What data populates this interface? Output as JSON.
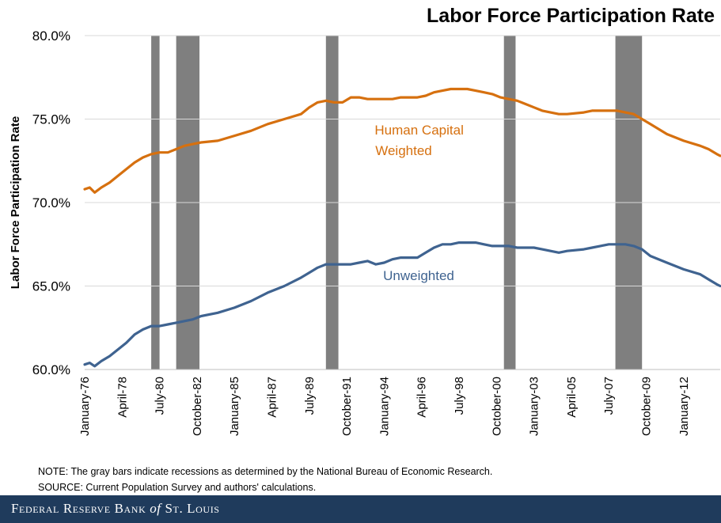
{
  "header": {
    "title": "Labor Force Participation Rate"
  },
  "notes": {
    "note": "NOTE: The gray bars indicate recessions as determined by the National Bureau of Economic Research.",
    "source": "SOURCE: Current Population Survey and authors' calculations."
  },
  "footer": {
    "brand_pre": "Federal Reserve Bank",
    "brand_of": "of",
    "brand_post": "St. Louis"
  },
  "colors": {
    "weighted": "#d6700f",
    "unweighted": "#3f6390",
    "recession": "#7f7f7f",
    "footer_bg": "#1f3b5c"
  },
  "chart_data": {
    "type": "line",
    "title": "Labor Force Participation Rate",
    "ylabel": "Labor Force Participation  Rate",
    "xlabel": "",
    "ylim": [
      60,
      80
    ],
    "xlim": [
      1976.0,
      2014.2
    ],
    "yticks": [
      60,
      65,
      70,
      75,
      80
    ],
    "ytick_labels": [
      "60.0%",
      "65.0%",
      "70.0%",
      "75.0%",
      "80.0%"
    ],
    "xticks": [
      1976.0,
      1978.25,
      1980.5,
      1982.75,
      1985.0,
      1987.25,
      1989.5,
      1991.75,
      1994.0,
      1996.25,
      1998.5,
      2000.75,
      2003.0,
      2005.25,
      2007.5,
      2009.75,
      2012.0
    ],
    "xtick_labels": [
      "January-76",
      "April-78",
      "July-80",
      "October-82",
      "January-85",
      "April-87",
      "July-89",
      "October-91",
      "January-94",
      "April-96",
      "July-98",
      "October-00",
      "January-03",
      "April-05",
      "July-07",
      "October-09",
      "January-12"
    ],
    "recessions": [
      [
        1980.0,
        1980.5
      ],
      [
        1981.5,
        1982.9
      ],
      [
        1990.5,
        1991.25
      ],
      [
        2001.2,
        2001.9
      ],
      [
        2007.9,
        2009.5
      ]
    ],
    "series": [
      {
        "name": "Human Capital Weighted",
        "label_lines": [
          "Human Capital",
          "Weighted"
        ],
        "x": [
          1976.0,
          1976.3,
          1976.6,
          1977.0,
          1977.5,
          1978.0,
          1978.5,
          1979.0,
          1979.5,
          1980.0,
          1980.5,
          1981.0,
          1981.5,
          1982.0,
          1982.5,
          1983.0,
          1984.0,
          1985.0,
          1986.0,
          1987.0,
          1988.0,
          1989.0,
          1989.5,
          1990.0,
          1990.5,
          1991.0,
          1991.5,
          1992.0,
          1992.5,
          1993.0,
          1993.5,
          1994.0,
          1994.5,
          1995.0,
          1996.0,
          1996.5,
          1997.0,
          1997.5,
          1998.0,
          1998.5,
          1999.0,
          1999.5,
          2000.0,
          2000.5,
          2001.0,
          2001.5,
          2002.0,
          2002.5,
          2003.0,
          2003.5,
          2004.0,
          2004.5,
          2005.0,
          2006.0,
          2006.5,
          2007.0,
          2007.5,
          2008.0,
          2008.5,
          2009.0,
          2009.5,
          2010.0,
          2011.0,
          2012.0,
          2013.0,
          2013.5,
          2014.0,
          2014.2
        ],
        "values": [
          70.8,
          70.9,
          70.6,
          70.9,
          71.2,
          71.6,
          72.0,
          72.4,
          72.7,
          72.9,
          73.0,
          73.0,
          73.2,
          73.4,
          73.5,
          73.6,
          73.7,
          74.0,
          74.3,
          74.7,
          75.0,
          75.3,
          75.7,
          76.0,
          76.1,
          76.0,
          76.0,
          76.3,
          76.3,
          76.2,
          76.2,
          76.2,
          76.2,
          76.3,
          76.3,
          76.4,
          76.6,
          76.7,
          76.8,
          76.8,
          76.8,
          76.7,
          76.6,
          76.5,
          76.3,
          76.2,
          76.1,
          75.9,
          75.7,
          75.5,
          75.4,
          75.3,
          75.3,
          75.4,
          75.5,
          75.5,
          75.5,
          75.5,
          75.4,
          75.3,
          75.0,
          74.7,
          74.1,
          73.7,
          73.4,
          73.2,
          72.9,
          72.8
        ]
      },
      {
        "name": "Unweighted",
        "label_lines": [
          "Unweighted"
        ],
        "x": [
          1976.0,
          1976.3,
          1976.6,
          1977.0,
          1977.5,
          1978.0,
          1978.5,
          1979.0,
          1979.5,
          1980.0,
          1980.5,
          1981.0,
          1981.5,
          1982.0,
          1982.5,
          1983.0,
          1984.0,
          1985.0,
          1986.0,
          1987.0,
          1988.0,
          1989.0,
          1989.5,
          1990.0,
          1990.5,
          1991.0,
          1991.5,
          1992.0,
          1992.5,
          1993.0,
          1993.5,
          1994.0,
          1994.5,
          1995.0,
          1995.5,
          1996.0,
          1996.5,
          1997.0,
          1997.5,
          1998.0,
          1998.5,
          1999.0,
          1999.5,
          2000.0,
          2000.5,
          2001.0,
          2001.5,
          2002.0,
          2002.5,
          2003.0,
          2003.5,
          2004.0,
          2004.5,
          2005.0,
          2006.0,
          2006.5,
          2007.0,
          2007.5,
          2008.0,
          2008.5,
          2009.0,
          2009.5,
          2010.0,
          2011.0,
          2012.0,
          2013.0,
          2013.5,
          2014.0,
          2014.2
        ],
        "values": [
          60.3,
          60.4,
          60.2,
          60.5,
          60.8,
          61.2,
          61.6,
          62.1,
          62.4,
          62.6,
          62.6,
          62.7,
          62.8,
          62.9,
          63.0,
          63.2,
          63.4,
          63.7,
          64.1,
          64.6,
          65.0,
          65.5,
          65.8,
          66.1,
          66.3,
          66.3,
          66.3,
          66.3,
          66.4,
          66.5,
          66.3,
          66.4,
          66.6,
          66.7,
          66.7,
          66.7,
          67.0,
          67.3,
          67.5,
          67.5,
          67.6,
          67.6,
          67.6,
          67.5,
          67.4,
          67.4,
          67.4,
          67.3,
          67.3,
          67.3,
          67.2,
          67.1,
          67.0,
          67.1,
          67.2,
          67.3,
          67.4,
          67.5,
          67.5,
          67.5,
          67.4,
          67.2,
          66.8,
          66.4,
          66.0,
          65.7,
          65.4,
          65.1,
          65.0
        ]
      }
    ]
  }
}
